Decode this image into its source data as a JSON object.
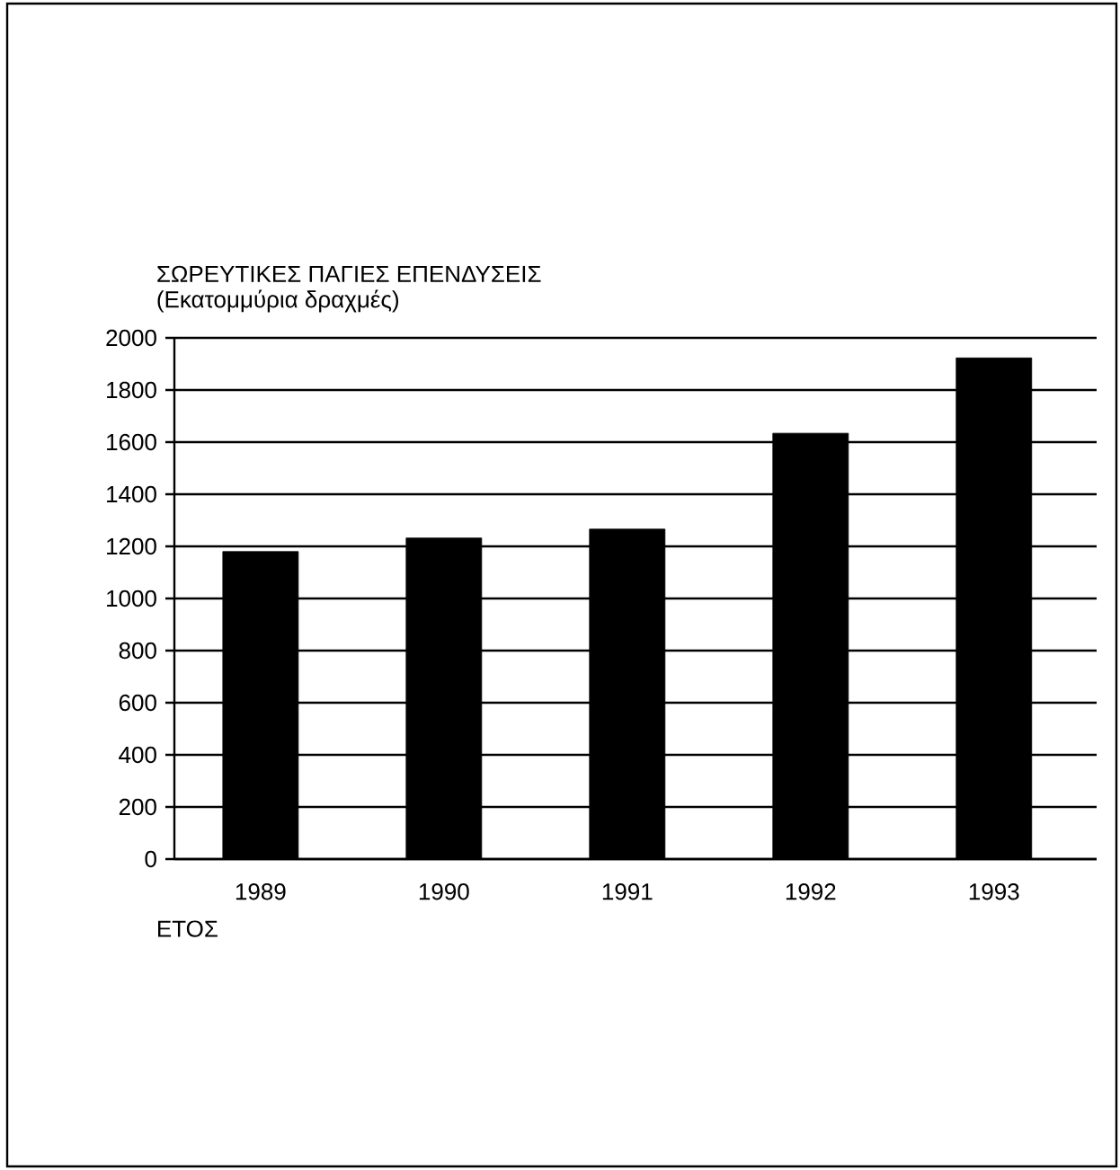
{
  "chart_data": {
    "type": "bar",
    "title": "ΣΩΡΕΥΤΙΚΕΣ ΠΑΓΙΕΣ ΕΠΕΝΔΥΣΕΙΣ",
    "ylabel": "(Εκατομμύρια δραχμές)",
    "xlabel": "ΕΤΟΣ",
    "categories": [
      "1989",
      "1990",
      "1991",
      "1992",
      "1993"
    ],
    "values": [
      1180,
      1232,
      1266,
      1634,
      1923
    ],
    "color": "#000000",
    "ylim": [
      0,
      2000
    ],
    "yticks": [
      0,
      200,
      400,
      600,
      800,
      1000,
      1200,
      1400,
      1600,
      1800,
      2000
    ],
    "grid": "y"
  }
}
